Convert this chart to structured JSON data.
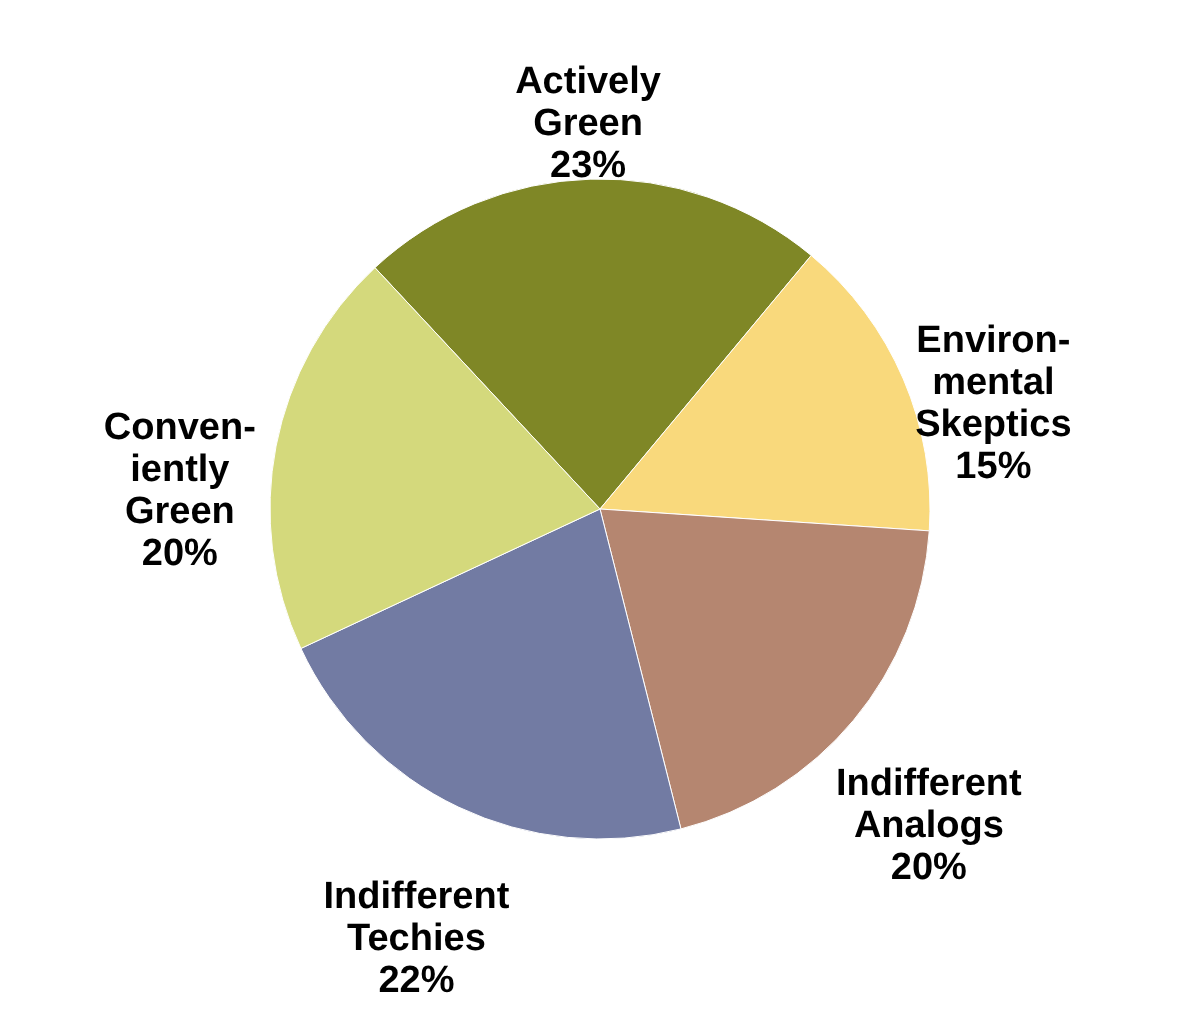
{
  "chart_data": {
    "type": "pie",
    "categories": [
      "Actively\nGreen",
      "Environ-\nmental\nSkeptics",
      "Indifferent\nAnalogs",
      "Indifferent\nTechies",
      "Conven-\niently\nGreen"
    ],
    "values": [
      23,
      15,
      20,
      22,
      20
    ],
    "value_labels": [
      "23%",
      "15%",
      "20%",
      "22%",
      "20%"
    ],
    "colors": [
      "#7f8726",
      "#f9d97c",
      "#b58670",
      "#727ba3",
      "#d4d97c"
    ]
  }
}
